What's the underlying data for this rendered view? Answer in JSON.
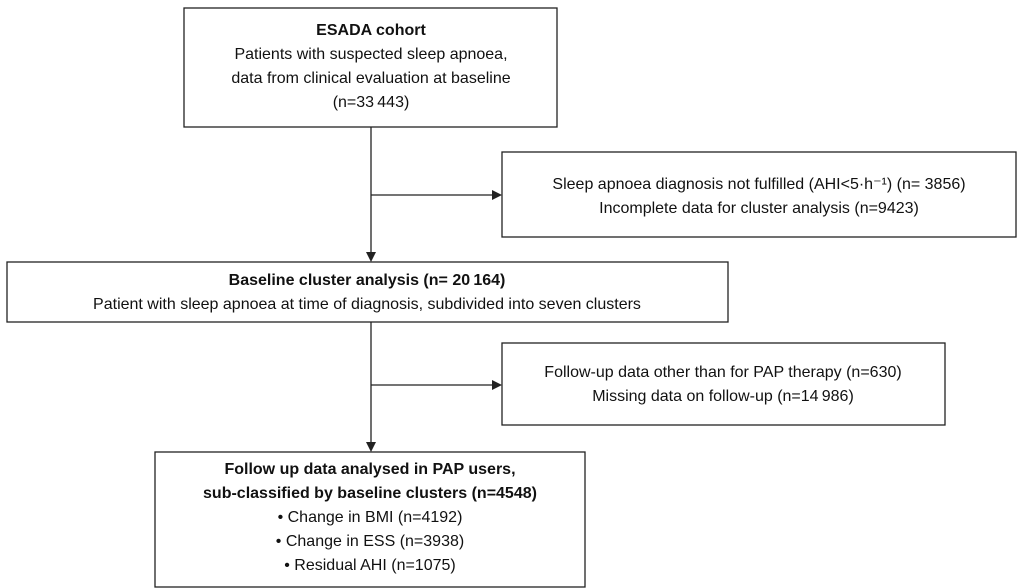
{
  "nodes": [
    {
      "lines": [
        "ESADA cohort",
        "Patients with suspected sleep apnoea,",
        "data from clinical evaluation at baseline",
        "(n=33 443)"
      ]
    },
    {
      "lines": [
        "Sleep apnoea diagnosis not fulfilled (AHI<5·h⁻¹) (n= 3856)",
        "Incomplete data for cluster analysis (n=9423)"
      ]
    },
    {
      "lines": [
        "Baseline cluster analysis (n= 20 164)",
        "Patient with sleep apnoea at time of diagnosis, subdivided into seven clusters"
      ]
    },
    {
      "lines": [
        "Follow-up data other than for PAP therapy (n=630)",
        "Missing data on follow-up (n=14 986)"
      ]
    },
    {
      "lines": [
        "Follow up data analysed in PAP users,",
        "sub-classified by baseline clusters (n=4548)",
        "• Change in BMI (n=4192)",
        "• Change in ESS (n=3938)",
        "• Residual AHI (n=1075)"
      ]
    }
  ]
}
